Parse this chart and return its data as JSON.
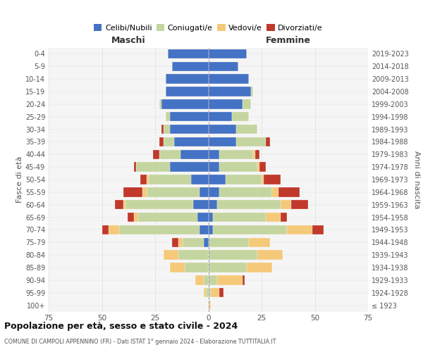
{
  "age_groups": [
    "100+",
    "95-99",
    "90-94",
    "85-89",
    "80-84",
    "75-79",
    "70-74",
    "65-69",
    "60-64",
    "55-59",
    "50-54",
    "45-49",
    "40-44",
    "35-39",
    "30-34",
    "25-29",
    "20-24",
    "15-19",
    "10-14",
    "5-9",
    "0-4"
  ],
  "birth_years": [
    "≤ 1923",
    "1924-1928",
    "1929-1933",
    "1934-1938",
    "1939-1943",
    "1944-1948",
    "1949-1953",
    "1954-1958",
    "1959-1963",
    "1964-1968",
    "1969-1973",
    "1974-1978",
    "1979-1983",
    "1984-1988",
    "1989-1993",
    "1994-1998",
    "1999-2003",
    "2004-2008",
    "2009-2013",
    "2014-2018",
    "2019-2023"
  ],
  "maschi": {
    "celibi": [
      0,
      0,
      0,
      0,
      0,
      2,
      4,
      5,
      7,
      4,
      8,
      18,
      13,
      16,
      18,
      18,
      22,
      20,
      20,
      17,
      19
    ],
    "coniugati": [
      0,
      1,
      2,
      11,
      14,
      10,
      38,
      28,
      32,
      25,
      20,
      16,
      10,
      5,
      3,
      2,
      1,
      0,
      0,
      0,
      0
    ],
    "vedovi": [
      0,
      1,
      4,
      7,
      7,
      2,
      5,
      2,
      1,
      2,
      1,
      0,
      0,
      0,
      0,
      0,
      0,
      0,
      0,
      0,
      0
    ],
    "divorziati": [
      0,
      0,
      0,
      0,
      0,
      3,
      3,
      3,
      4,
      9,
      3,
      1,
      3,
      2,
      1,
      0,
      0,
      0,
      0,
      0,
      0
    ]
  },
  "femmine": {
    "nubili": [
      0,
      0,
      0,
      0,
      0,
      0,
      2,
      2,
      4,
      5,
      8,
      5,
      5,
      13,
      13,
      11,
      16,
      20,
      19,
      14,
      18
    ],
    "coniugate": [
      0,
      1,
      4,
      18,
      23,
      19,
      35,
      25,
      30,
      25,
      17,
      18,
      16,
      14,
      10,
      8,
      4,
      1,
      0,
      0,
      0
    ],
    "vedove": [
      1,
      4,
      12,
      12,
      12,
      10,
      12,
      7,
      5,
      3,
      1,
      1,
      1,
      0,
      0,
      0,
      0,
      0,
      0,
      0,
      0
    ],
    "divorziate": [
      0,
      2,
      1,
      0,
      0,
      0,
      5,
      3,
      8,
      10,
      8,
      3,
      2,
      2,
      0,
      0,
      0,
      0,
      0,
      0,
      0
    ]
  },
  "colors": {
    "celibi_nubili": "#4472C4",
    "coniugati": "#C5D5A0",
    "vedovi": "#F5C97A",
    "divorziati": "#C0392B"
  },
  "title": "Popolazione per età, sesso e stato civile - 2024",
  "subtitle": "COMUNE DI CAMPOLI APPENNINO (FR) - Dati ISTAT 1° gennaio 2024 - Elaborazione TUTTITALIA.IT",
  "ylabel_left": "Fasce di età",
  "ylabel_right": "Anni di nascita",
  "xlabel_left": "Maschi",
  "xlabel_right": "Femmine",
  "xlim": 75,
  "bg_color": "#ffffff",
  "plot_bg_color": "#f5f5f5",
  "grid_color": "#cccccc",
  "legend_labels": [
    "Celibi/Nubili",
    "Coniugati/e",
    "Vedovi/e",
    "Divorziati/e"
  ]
}
